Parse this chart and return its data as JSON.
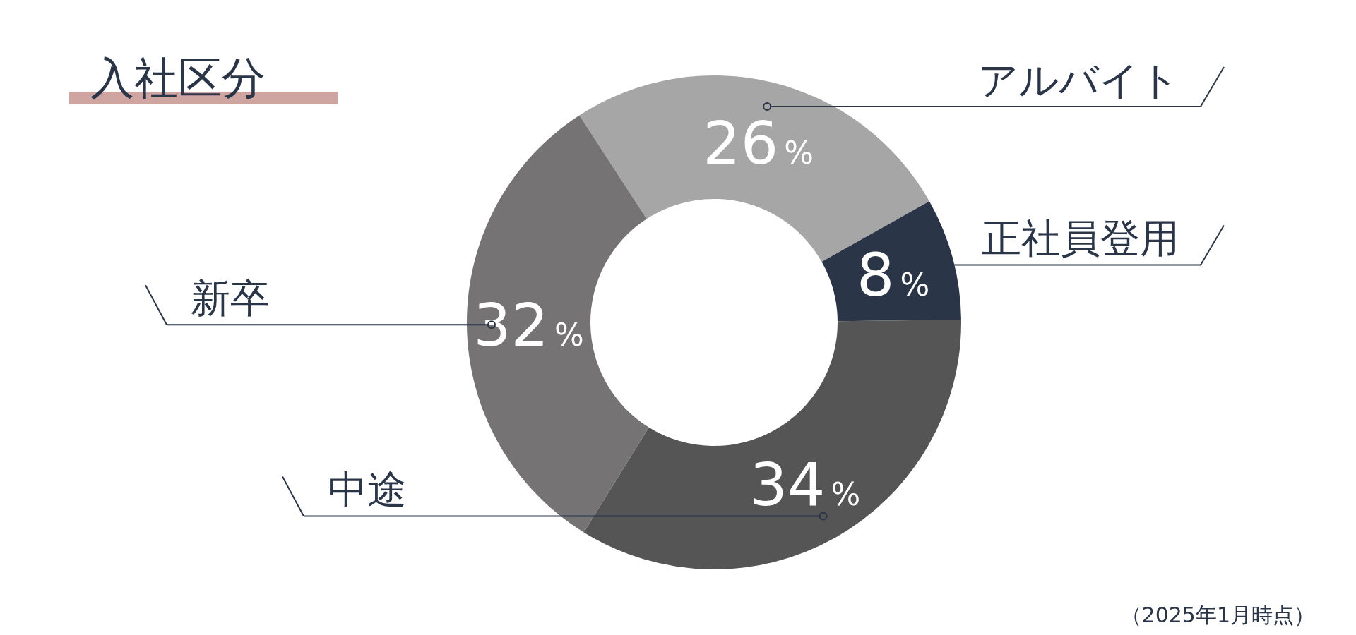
{
  "chart_data": {
    "type": "donut",
    "title": "入社区分",
    "categories": [
      "アルバイト",
      "正社員登用",
      "中途",
      "新卒"
    ],
    "values": [
      26,
      8,
      34,
      32
    ],
    "colors": [
      "#a6a6a6",
      "#2b3548",
      "#555555",
      "#757374"
    ],
    "value_labels": [
      "26%",
      "8%",
      "34%",
      "32%"
    ],
    "annotations": [
      "（2025年1月時点）"
    ]
  }
}
